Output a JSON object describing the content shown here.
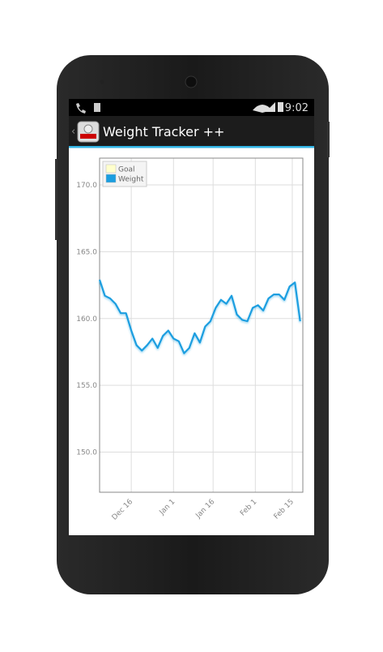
{
  "status_bar": {
    "time": "9:02"
  },
  "app_bar": {
    "title": "Weight Tracker ++"
  },
  "chart_data": {
    "type": "line",
    "x": [
      "Dec 4",
      "Dec 6",
      "Dec 8",
      "Dec 10",
      "Dec 12",
      "Dec 14",
      "Dec 16",
      "Dec 18",
      "Dec 20",
      "Dec 22",
      "Dec 24",
      "Dec 26",
      "Dec 28",
      "Dec 30",
      "Jan 1",
      "Jan 3",
      "Jan 5",
      "Jan 7",
      "Jan 9",
      "Jan 11",
      "Jan 13",
      "Jan 15",
      "Jan 17",
      "Jan 19",
      "Jan 21",
      "Jan 23",
      "Jan 25",
      "Jan 27",
      "Jan 29",
      "Jan 31",
      "Feb 2",
      "Feb 4",
      "Feb 6",
      "Feb 8",
      "Feb 10",
      "Feb 12",
      "Feb 14",
      "Feb 16",
      "Feb 18"
    ],
    "series": [
      {
        "name": "Goal",
        "color": "#ffffcc",
        "values": [
          null,
          null,
          null,
          null,
          null,
          null,
          null,
          null,
          null,
          null,
          null,
          null,
          null,
          null,
          null,
          null,
          null,
          null,
          null,
          null,
          null,
          null,
          null,
          null,
          null,
          null,
          null,
          null,
          null,
          null,
          null,
          null,
          null,
          null,
          null,
          null,
          null,
          null,
          null
        ]
      },
      {
        "name": "Weight",
        "color": "#1a9ee0",
        "values": [
          162.9,
          161.7,
          161.5,
          161.1,
          160.4,
          160.4,
          159.1,
          158.0,
          157.6,
          158.0,
          158.5,
          157.8,
          158.7,
          159.1,
          158.5,
          158.3,
          157.4,
          157.8,
          158.9,
          158.2,
          159.4,
          159.8,
          160.8,
          161.4,
          161.1,
          161.7,
          160.3,
          159.9,
          159.8,
          160.8,
          161.0,
          160.6,
          161.5,
          161.8,
          161.8,
          161.4,
          162.4,
          162.7,
          159.8
        ]
      }
    ],
    "xlim": [
      "Dec 4",
      "Feb 19"
    ],
    "xticks": [
      "Dec 16",
      "Jan 1",
      "Jan 16",
      "Feb 1",
      "Feb 15"
    ],
    "ylim": [
      147,
      172
    ],
    "yticks": [
      {
        "value": 150,
        "label": "150.0"
      },
      {
        "value": 155,
        "label": "155.0"
      },
      {
        "value": 160,
        "label": "160.0"
      },
      {
        "value": 165,
        "label": "165.0"
      },
      {
        "value": 170,
        "label": "170.0"
      }
    ],
    "grid": true,
    "legend": "upper left"
  }
}
